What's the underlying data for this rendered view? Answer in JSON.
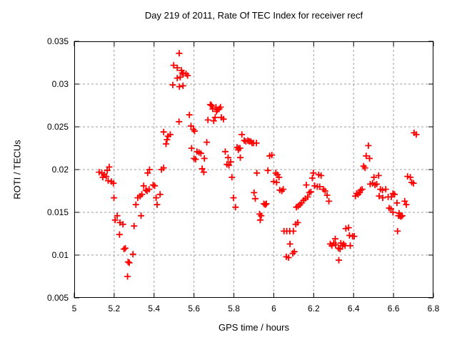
{
  "chart_data": {
    "type": "scatter",
    "title": "Day 219 of 2011, Rate Of TEC Index for receiver recf",
    "xlabel": "GPS time / hours",
    "ylabel": "ROTI / TECUs",
    "xlim": [
      5.0,
      6.8
    ],
    "ylim": [
      0.005,
      0.035
    ],
    "grid": true,
    "legend_position": "none",
    "marker": {
      "shape": "plus",
      "color": "#ff0000",
      "size": 4.5,
      "stroke_width": 1.8
    },
    "x_ticks": [
      {
        "value": 5.0,
        "label": "5"
      },
      {
        "value": 5.2,
        "label": "5.2"
      },
      {
        "value": 5.4,
        "label": "5.4"
      },
      {
        "value": 5.6,
        "label": "5.6"
      },
      {
        "value": 5.8,
        "label": "5.8"
      },
      {
        "value": 6.0,
        "label": "6"
      },
      {
        "value": 6.2,
        "label": "6.2"
      },
      {
        "value": 6.4,
        "label": "6.4"
      },
      {
        "value": 6.6,
        "label": "6.6"
      },
      {
        "value": 6.8,
        "label": "6.8"
      }
    ],
    "y_ticks": [
      {
        "value": 0.005,
        "label": "0.005"
      },
      {
        "value": 0.01,
        "label": "0.01"
      },
      {
        "value": 0.015,
        "label": "0.015"
      },
      {
        "value": 0.02,
        "label": "0.02"
      },
      {
        "value": 0.025,
        "label": "0.025"
      },
      {
        "value": 0.03,
        "label": "0.03"
      },
      {
        "value": 0.035,
        "label": "0.035"
      }
    ],
    "series": [
      {
        "name": "ROTI",
        "points": [
          [
            5.125,
            0.0197
          ],
          [
            5.138,
            0.0196
          ],
          [
            5.15,
            0.0194
          ],
          [
            5.143,
            0.0191
          ],
          [
            5.16,
            0.0192
          ],
          [
            5.165,
            0.0199
          ],
          [
            5.175,
            0.0203
          ],
          [
            5.17,
            0.0187
          ],
          [
            5.186,
            0.0186
          ],
          [
            5.196,
            0.0184
          ],
          [
            5.199,
            0.0167
          ],
          [
            5.205,
            0.0141
          ],
          [
            5.215,
            0.0146
          ],
          [
            5.229,
            0.0138
          ],
          [
            5.244,
            0.0136
          ],
          [
            5.227,
            0.0124
          ],
          [
            5.249,
            0.0107
          ],
          [
            5.256,
            0.0108
          ],
          [
            5.27,
            0.0092
          ],
          [
            5.276,
            0.0091
          ],
          [
            5.267,
            0.0075
          ],
          [
            5.294,
            0.0101
          ],
          [
            5.3,
            0.0134
          ],
          [
            5.309,
            0.0159
          ],
          [
            5.318,
            0.0167
          ],
          [
            5.33,
            0.0169
          ],
          [
            5.335,
            0.0146
          ],
          [
            5.339,
            0.0171
          ],
          [
            5.348,
            0.0181
          ],
          [
            5.359,
            0.0176
          ],
          [
            5.365,
            0.0175
          ],
          [
            5.375,
            0.0177
          ],
          [
            5.368,
            0.0196
          ],
          [
            5.377,
            0.02
          ],
          [
            5.395,
            0.0182
          ],
          [
            5.403,
            0.0181
          ],
          [
            5.41,
            0.0167
          ],
          [
            5.415,
            0.0159
          ],
          [
            5.43,
            0.0171
          ],
          [
            5.437,
            0.02
          ],
          [
            5.448,
            0.0202
          ],
          [
            5.448,
            0.0244
          ],
          [
            5.46,
            0.023
          ],
          [
            5.465,
            0.0235
          ],
          [
            5.47,
            0.0239
          ],
          [
            5.481,
            0.0241
          ],
          [
            5.494,
            0.0299
          ],
          [
            5.498,
            0.0322
          ],
          [
            5.516,
            0.0319
          ],
          [
            5.526,
            0.0336
          ],
          [
            5.537,
            0.0316
          ],
          [
            5.541,
            0.0313
          ],
          [
            5.546,
            0.0312
          ],
          [
            5.516,
            0.0307
          ],
          [
            5.531,
            0.0308
          ],
          [
            5.56,
            0.0312
          ],
          [
            5.568,
            0.031
          ],
          [
            5.545,
            0.0298
          ],
          [
            5.527,
            0.0297
          ],
          [
            5.525,
            0.0256
          ],
          [
            5.577,
            0.0264
          ],
          [
            5.585,
            0.0251
          ],
          [
            5.597,
            0.0247
          ],
          [
            5.603,
            0.0245
          ],
          [
            5.588,
            0.0225
          ],
          [
            5.6,
            0.0213
          ],
          [
            5.608,
            0.0212
          ],
          [
            5.615,
            0.0221
          ],
          [
            5.625,
            0.022
          ],
          [
            5.635,
            0.0219
          ],
          [
            5.652,
            0.0213
          ],
          [
            5.641,
            0.0201
          ],
          [
            5.649,
            0.0197
          ],
          [
            5.664,
            0.0232
          ],
          [
            5.67,
            0.0258
          ],
          [
            5.682,
            0.0276
          ],
          [
            5.688,
            0.0275
          ],
          [
            5.694,
            0.0271
          ],
          [
            5.699,
            0.0257
          ],
          [
            5.706,
            0.0261
          ],
          [
            5.71,
            0.0273
          ],
          [
            5.713,
            0.0268
          ],
          [
            5.718,
            0.027
          ],
          [
            5.726,
            0.0271
          ],
          [
            5.733,
            0.0273
          ],
          [
            5.737,
            0.0261
          ],
          [
            5.748,
            0.0259
          ],
          [
            5.757,
            0.0221
          ],
          [
            5.765,
            0.0206
          ],
          [
            5.771,
            0.0214
          ],
          [
            5.775,
            0.0205
          ],
          [
            5.784,
            0.0209
          ],
          [
            5.79,
            0.0191
          ],
          [
            5.798,
            0.0167
          ],
          [
            5.808,
            0.0156
          ],
          [
            5.816,
            0.0226
          ],
          [
            5.824,
            0.0225
          ],
          [
            5.831,
            0.0225
          ],
          [
            5.822,
            0.0223
          ],
          [
            5.832,
            0.0214
          ],
          [
            5.84,
            0.0241
          ],
          [
            5.852,
            0.0234
          ],
          [
            5.86,
            0.0233
          ],
          [
            5.87,
            0.0234
          ],
          [
            5.877,
            0.0233
          ],
          [
            5.885,
            0.0233
          ],
          [
            5.891,
            0.0231
          ],
          [
            5.899,
            0.0231
          ],
          [
            5.913,
            0.0231
          ],
          [
            5.901,
            0.0173
          ],
          [
            5.907,
            0.0166
          ],
          [
            5.915,
            0.0196
          ],
          [
            5.929,
            0.0148
          ],
          [
            5.937,
            0.0146
          ],
          [
            5.932,
            0.0141
          ],
          [
            5.95,
            0.016
          ],
          [
            5.957,
            0.0159
          ],
          [
            5.963,
            0.016
          ],
          [
            5.97,
            0.0199
          ],
          [
            5.979,
            0.0216
          ],
          [
            5.99,
            0.0217
          ],
          [
            6.0,
            0.0186
          ],
          [
            6.014,
            0.0185
          ],
          [
            6.01,
            0.0196
          ],
          [
            6.018,
            0.0194
          ],
          [
            6.026,
            0.0191
          ],
          [
            6.03,
            0.0176
          ],
          [
            6.04,
            0.0175
          ],
          [
            6.047,
            0.0177
          ],
          [
            6.051,
            0.0128
          ],
          [
            6.065,
            0.0128
          ],
          [
            6.08,
            0.0128
          ],
          [
            6.098,
            0.0128
          ],
          [
            6.063,
            0.0098
          ],
          [
            6.074,
            0.0097
          ],
          [
            6.081,
            0.0113
          ],
          [
            6.095,
            0.0102
          ],
          [
            6.103,
            0.0104
          ],
          [
            6.11,
            0.0136
          ],
          [
            6.12,
            0.0138
          ],
          [
            6.113,
            0.0156
          ],
          [
            6.122,
            0.0157
          ],
          [
            6.131,
            0.0159
          ],
          [
            6.139,
            0.0161
          ],
          [
            6.149,
            0.0164
          ],
          [
            6.158,
            0.0166
          ],
          [
            6.17,
            0.0168
          ],
          [
            6.178,
            0.0173
          ],
          [
            6.186,
            0.0174
          ],
          [
            6.163,
            0.0182
          ],
          [
            6.193,
            0.019
          ],
          [
            6.198,
            0.0196
          ],
          [
            6.205,
            0.0181
          ],
          [
            6.218,
            0.018
          ],
          [
            6.23,
            0.018
          ],
          [
            6.225,
            0.0194
          ],
          [
            6.237,
            0.0193
          ],
          [
            6.249,
            0.0177
          ],
          [
            6.257,
            0.0175
          ],
          [
            6.267,
            0.017
          ],
          [
            6.276,
            0.0163
          ],
          [
            6.283,
            0.0113
          ],
          [
            6.291,
            0.0111
          ],
          [
            6.3,
            0.0114
          ],
          [
            6.31,
            0.0112
          ],
          [
            6.308,
            0.0119
          ],
          [
            6.324,
            0.0108
          ],
          [
            6.332,
            0.0107
          ],
          [
            6.336,
            0.0114
          ],
          [
            6.344,
            0.0111
          ],
          [
            6.35,
            0.0113
          ],
          [
            6.357,
            0.0111
          ],
          [
            6.326,
            0.0094
          ],
          [
            6.361,
            0.0131
          ],
          [
            6.375,
            0.0132
          ],
          [
            6.379,
            0.0123
          ],
          [
            6.395,
            0.0122
          ],
          [
            6.403,
            0.0122
          ],
          [
            6.383,
            0.0111
          ],
          [
            6.409,
            0.0169
          ],
          [
            6.415,
            0.0172
          ],
          [
            6.423,
            0.0171
          ],
          [
            6.43,
            0.0173
          ],
          [
            6.435,
            0.0176
          ],
          [
            6.443,
            0.0177
          ],
          [
            6.45,
            0.0204
          ],
          [
            6.457,
            0.0202
          ],
          [
            6.463,
            0.0216
          ],
          [
            6.474,
            0.0228
          ],
          [
            6.48,
            0.0213
          ],
          [
            6.483,
            0.0183
          ],
          [
            6.495,
            0.0184
          ],
          [
            6.502,
            0.0191
          ],
          [
            6.507,
            0.0182
          ],
          [
            6.516,
            0.0183
          ],
          [
            6.525,
            0.0193
          ],
          [
            6.534,
            0.0177
          ],
          [
            6.545,
            0.0176
          ],
          [
            6.561,
            0.0177
          ],
          [
            6.528,
            0.0169
          ],
          [
            6.546,
            0.0167
          ],
          [
            6.573,
            0.0168
          ],
          [
            6.589,
            0.0168
          ],
          [
            6.597,
            0.0172
          ],
          [
            6.605,
            0.0171
          ],
          [
            6.578,
            0.0155
          ],
          [
            6.587,
            0.0154
          ],
          [
            6.597,
            0.015
          ],
          [
            6.617,
            0.0161
          ],
          [
            6.625,
            0.0146
          ],
          [
            6.632,
            0.0146
          ],
          [
            6.637,
            0.0145
          ],
          [
            6.644,
            0.0146
          ],
          [
            6.628,
            0.0149
          ],
          [
            6.62,
            0.0128
          ],
          [
            6.656,
            0.0163
          ],
          [
            6.664,
            0.0159
          ],
          [
            6.67,
            0.0192
          ],
          [
            6.684,
            0.0191
          ],
          [
            6.691,
            0.0185
          ],
          [
            6.7,
            0.0184
          ],
          [
            6.703,
            0.0243
          ],
          [
            6.714,
            0.0241
          ]
        ]
      }
    ]
  },
  "colors": {
    "background": "#ffffff",
    "text": "#000000",
    "border": "#000000",
    "grid": "#9e9e9e",
    "marker": "#ff0000"
  }
}
